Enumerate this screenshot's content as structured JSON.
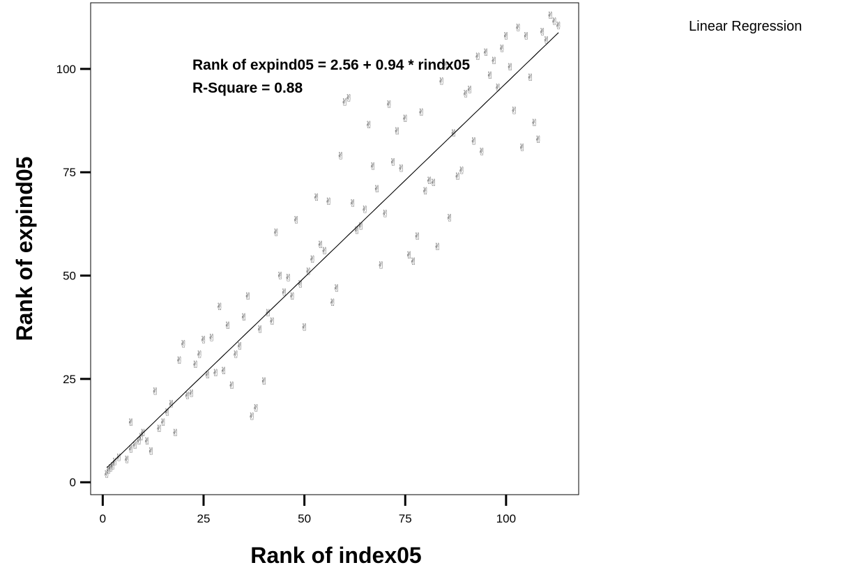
{
  "chart_data": {
    "type": "scatter",
    "xlabel": "Rank of index05",
    "ylabel": "Rank of expind05",
    "xlim": [
      -3,
      118
    ],
    "ylim": [
      -3,
      116
    ],
    "xticks": [
      0,
      25,
      50,
      75,
      100
    ],
    "yticks": [
      0,
      25,
      50,
      75,
      100
    ],
    "grid": false,
    "legend": {
      "placement": "top-right",
      "label": "Linear Regression"
    },
    "annotations": {
      "equation": "Rank of expind05 = 2.56 + 0.94 * rindx05",
      "r_square": "R-Square = 0.88"
    },
    "fit": {
      "intercept": 2.56,
      "slope": 0.94,
      "x_range": [
        1,
        113
      ]
    },
    "marker": "✌",
    "marker_color": "#555555",
    "line_color": "#000000",
    "points": [
      [
        1,
        2
      ],
      [
        1.5,
        3
      ],
      [
        2,
        3.5
      ],
      [
        2.5,
        4
      ],
      [
        3,
        5
      ],
      [
        4,
        6
      ],
      [
        6,
        5.5
      ],
      [
        7,
        8
      ],
      [
        7,
        14.5
      ],
      [
        8,
        9
      ],
      [
        9,
        10
      ],
      [
        9.5,
        11
      ],
      [
        10,
        12
      ],
      [
        11,
        10
      ],
      [
        12,
        7.5
      ],
      [
        13,
        22
      ],
      [
        14,
        13
      ],
      [
        15,
        14.5
      ],
      [
        16,
        17
      ],
      [
        17,
        19
      ],
      [
        18,
        12
      ],
      [
        19,
        29.5
      ],
      [
        20,
        33.5
      ],
      [
        21,
        21
      ],
      [
        22,
        21.5
      ],
      [
        23,
        28.5
      ],
      [
        24,
        31
      ],
      [
        25,
        34.5
      ],
      [
        26,
        26
      ],
      [
        27,
        35
      ],
      [
        28,
        26.5
      ],
      [
        29,
        42.5
      ],
      [
        30,
        27
      ],
      [
        31,
        38
      ],
      [
        32,
        23.5
      ],
      [
        33,
        31
      ],
      [
        34,
        33
      ],
      [
        35,
        40
      ],
      [
        36,
        45
      ],
      [
        37,
        16
      ],
      [
        38,
        18
      ],
      [
        39,
        37
      ],
      [
        40,
        24.5
      ],
      [
        41,
        41
      ],
      [
        42,
        39
      ],
      [
        43,
        60.5
      ],
      [
        44,
        50
      ],
      [
        45,
        46
      ],
      [
        46,
        49.5
      ],
      [
        47,
        45
      ],
      [
        48,
        63.5
      ],
      [
        49,
        48
      ],
      [
        50,
        37.5
      ],
      [
        51,
        51
      ],
      [
        52,
        54
      ],
      [
        53,
        69
      ],
      [
        54,
        57.5
      ],
      [
        55,
        56
      ],
      [
        56,
        68
      ],
      [
        57,
        43.5
      ],
      [
        58,
        47
      ],
      [
        59,
        79
      ],
      [
        60,
        92
      ],
      [
        61,
        93
      ],
      [
        62,
        67.5
      ],
      [
        63,
        61
      ],
      [
        64,
        62
      ],
      [
        65,
        66
      ],
      [
        66,
        86.5
      ],
      [
        67,
        76.5
      ],
      [
        68,
        71
      ],
      [
        69,
        52.5
      ],
      [
        70,
        65
      ],
      [
        71,
        91.5
      ],
      [
        72,
        77.5
      ],
      [
        73,
        85
      ],
      [
        74,
        76
      ],
      [
        75,
        88
      ],
      [
        76,
        55
      ],
      [
        77,
        53.5
      ],
      [
        78,
        59.5
      ],
      [
        79,
        89.5
      ],
      [
        80,
        70.5
      ],
      [
        81,
        73
      ],
      [
        82,
        72.5
      ],
      [
        83,
        57
      ],
      [
        84,
        97
      ],
      [
        85,
        101
      ],
      [
        86,
        64
      ],
      [
        87,
        84.5
      ],
      [
        88,
        74
      ],
      [
        89,
        75.5
      ],
      [
        90,
        94
      ],
      [
        91,
        95
      ],
      [
        92,
        82.5
      ],
      [
        93,
        103
      ],
      [
        94,
        80
      ],
      [
        95,
        104
      ],
      [
        96,
        98.5
      ],
      [
        97,
        102
      ],
      [
        98,
        95.5
      ],
      [
        99,
        105
      ],
      [
        100,
        108
      ],
      [
        101,
        100.5
      ],
      [
        102,
        90
      ],
      [
        103,
        110
      ],
      [
        104,
        81
      ],
      [
        105,
        108
      ],
      [
        106,
        98
      ],
      [
        107,
        87
      ],
      [
        108,
        83
      ],
      [
        109,
        109
      ],
      [
        110,
        107
      ],
      [
        111,
        113
      ],
      [
        112,
        111.5
      ],
      [
        113,
        110.5
      ]
    ]
  }
}
